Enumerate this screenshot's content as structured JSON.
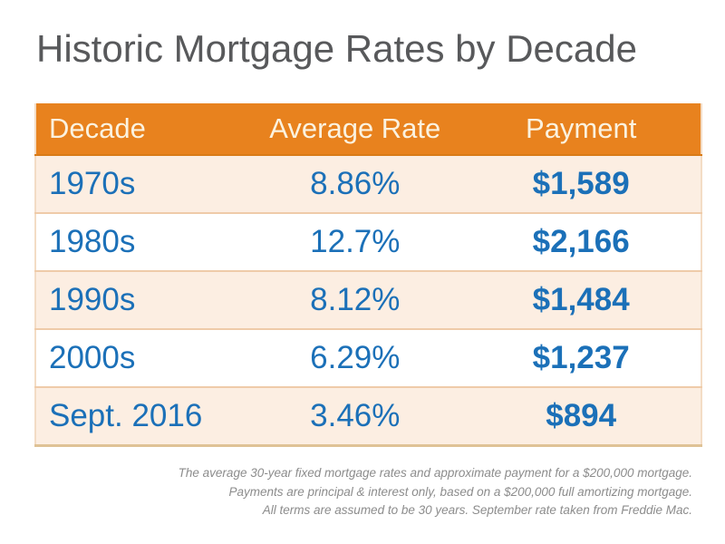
{
  "title": "Historic Mortgage Rates by Decade",
  "chart_data": {
    "type": "table",
    "title": "Historic Mortgage Rates by Decade",
    "columns": [
      "Decade",
      "Average Rate",
      "Payment"
    ],
    "rows": [
      [
        "1970s",
        "8.86%",
        "$1,589"
      ],
      [
        "1980s",
        "12.7%",
        "$2,166"
      ],
      [
        "1990s",
        "8.12%",
        "$1,484"
      ],
      [
        "2000s",
        "6.29%",
        "$1,237"
      ],
      [
        "Sept. 2016",
        "3.46%",
        "$894"
      ]
    ],
    "rates_numeric_percent": [
      8.86,
      12.7,
      8.12,
      6.29,
      3.46
    ],
    "payments_numeric_usd": [
      1589,
      2166,
      1484,
      1237,
      894
    ]
  },
  "footnote": {
    "lines": [
      "The average 30-year fixed mortgage rates and approximate payment for a $200,000 mortgage.",
      "Payments are principal & interest only, based on a $200,000 full amortizing mortgage.",
      "All terms are assumed to be 30 years. September rate taken from Freddie Mac."
    ]
  },
  "colors": {
    "header_background": "#E8821E",
    "header_text": "#FBF2DF",
    "row_cream_background": "#FCEEE2",
    "row_white_background": "#FFFFFF",
    "row_divider": "#EFCBA9",
    "table_bottom_border": "#DFC296",
    "value_text_blue": "#1B70B8",
    "title_gray": "#58595B",
    "footnote_gray": "#8C8C8C"
  }
}
